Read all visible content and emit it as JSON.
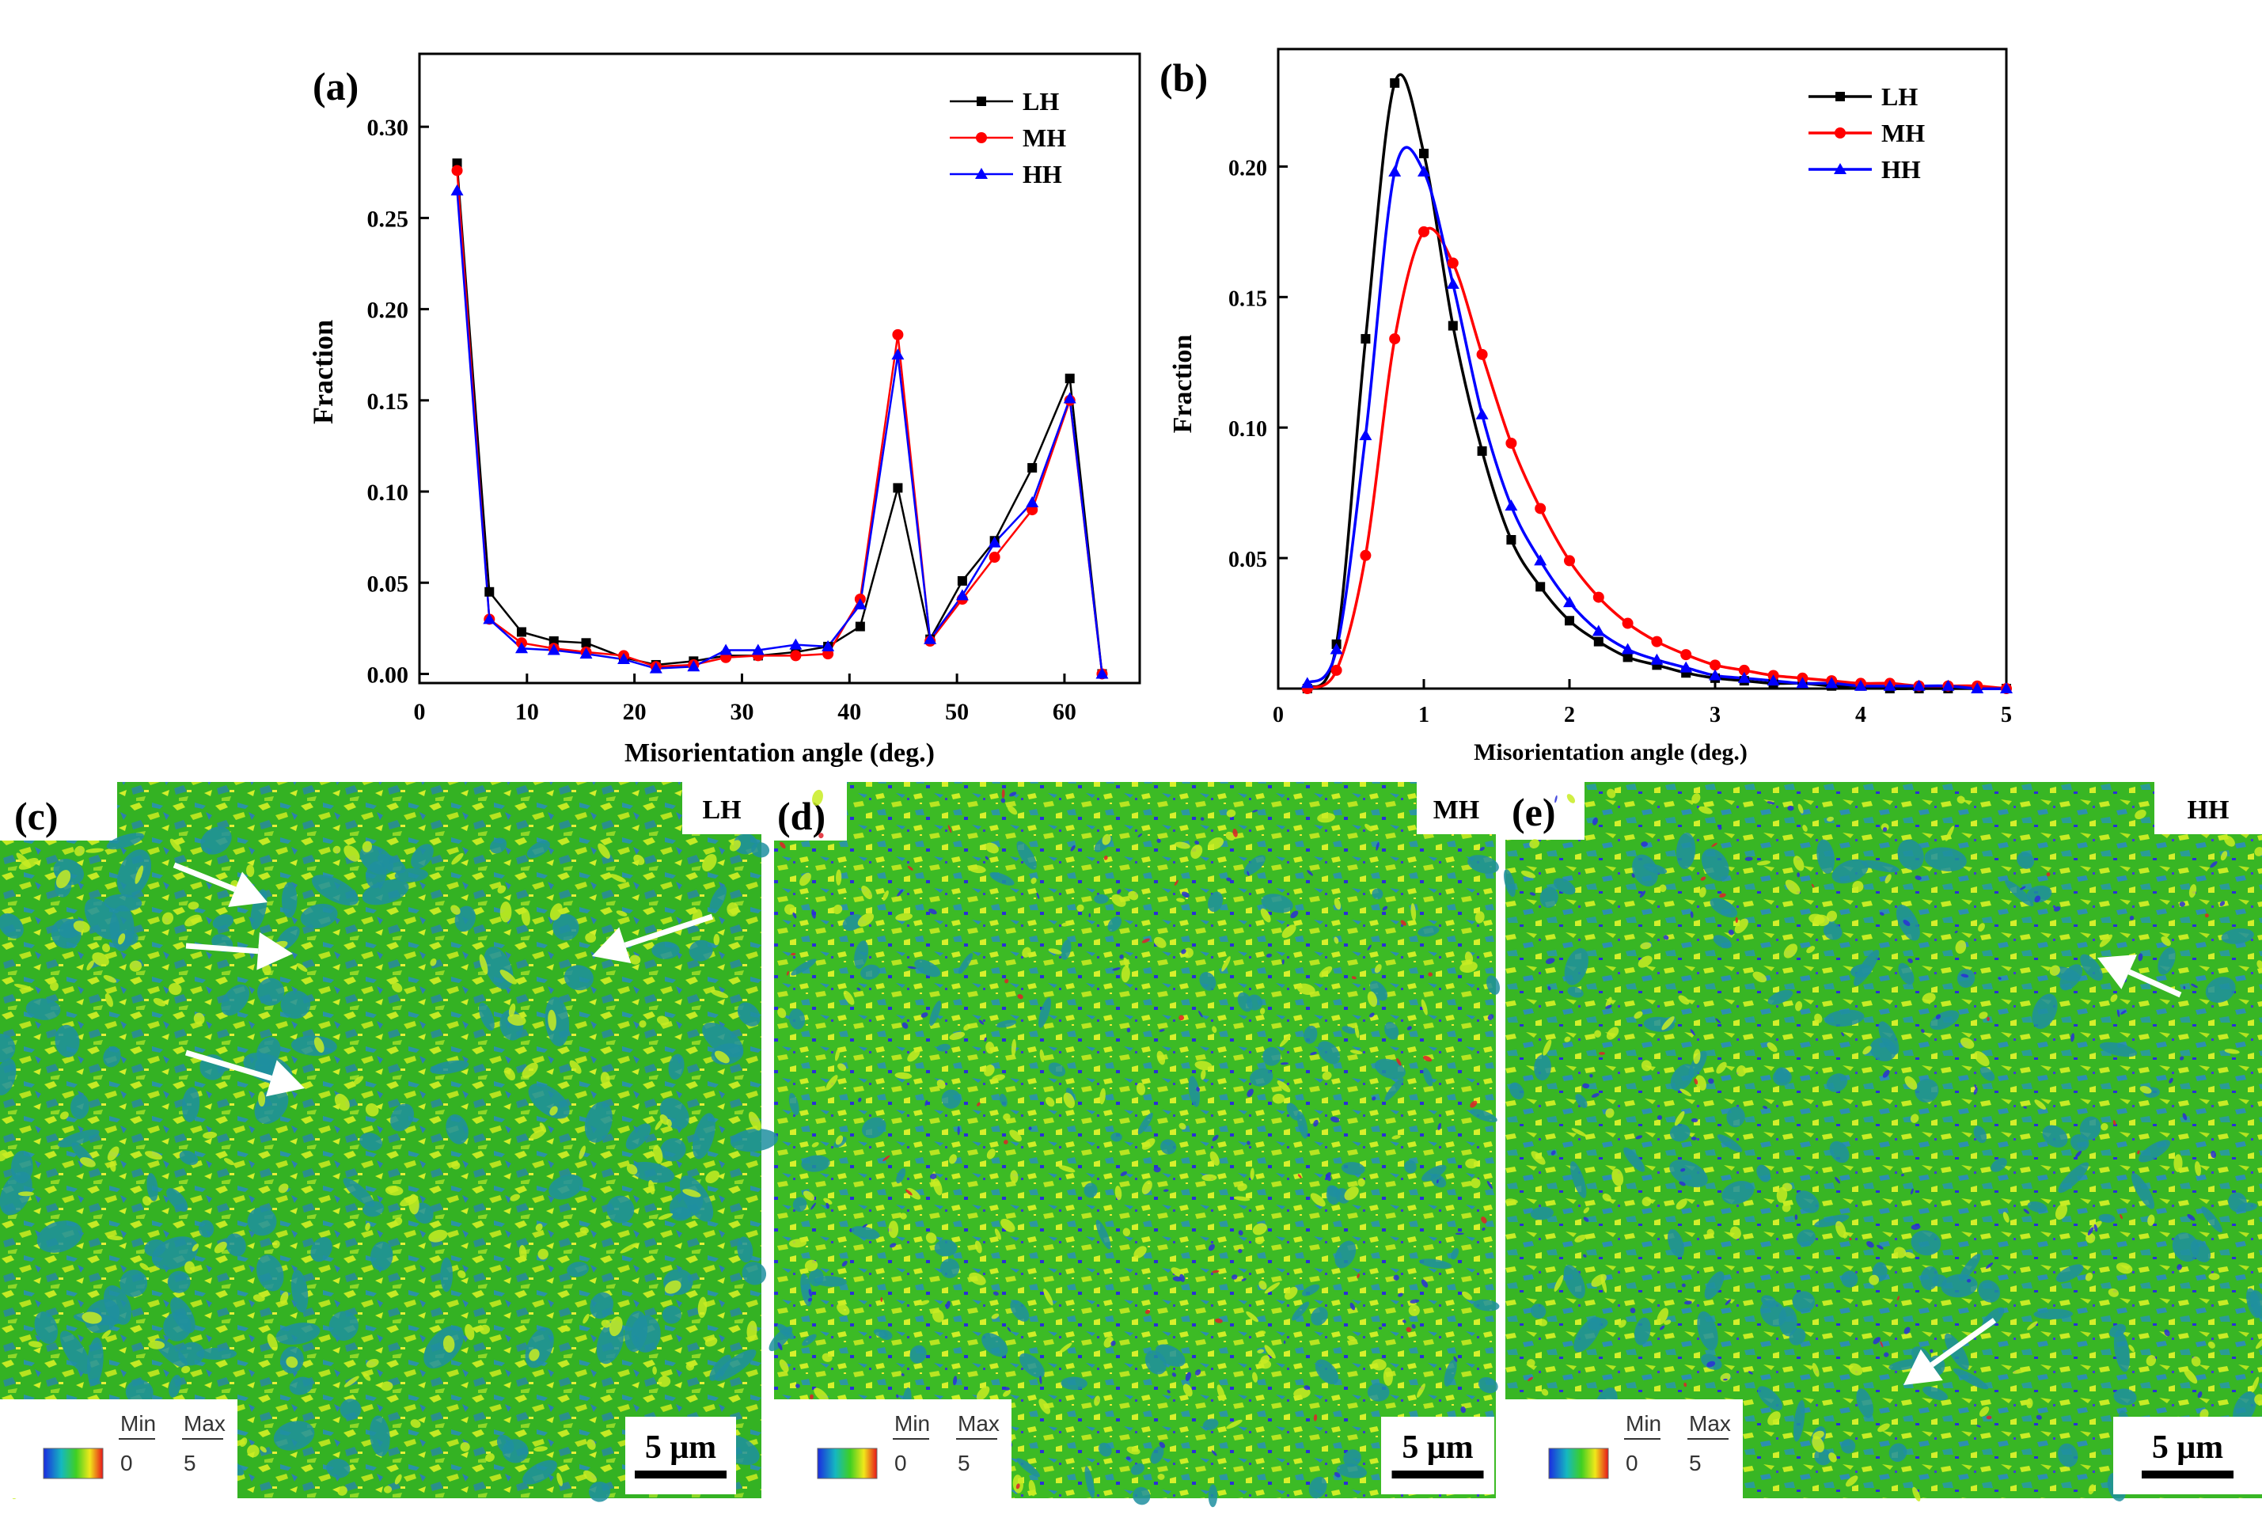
{
  "chart_data": [
    {
      "panel": "(a)",
      "type": "line",
      "xlabel": "Misorientation angle (deg.)",
      "ylabel": "Fraction",
      "xlim": [
        0,
        67
      ],
      "ylim": [
        -0.005,
        0.34
      ],
      "xticks": [
        "0",
        "10",
        "20",
        "30",
        "40",
        "50",
        "60"
      ],
      "xtick_values": [
        0,
        10,
        20,
        30,
        40,
        50,
        60
      ],
      "yticks": [
        "0.00",
        "0.05",
        "0.10",
        "0.15",
        "0.20",
        "0.25",
        "0.30"
      ],
      "ytick_values": [
        0,
        0.05,
        0.1,
        0.15,
        0.2,
        0.25,
        0.3
      ],
      "legend_position": "top-right",
      "x": [
        3.5,
        6.5,
        9.5,
        12.5,
        15.5,
        19,
        22,
        25.5,
        28.5,
        31.5,
        35,
        38,
        41,
        44.5,
        47.5,
        50.5,
        53.5,
        57,
        60.5,
        63.5
      ],
      "series": [
        {
          "name": "LH",
          "color": "#000000",
          "marker": "square",
          "values": [
            0.28,
            0.045,
            0.023,
            0.018,
            0.017,
            0.009,
            0.005,
            0.007,
            0.01,
            0.01,
            0.012,
            0.015,
            0.026,
            0.102,
            0.019,
            0.051,
            0.073,
            0.113,
            0.162,
            0.0
          ]
        },
        {
          "name": "MH",
          "color": "#ff0000",
          "marker": "circle",
          "values": [
            0.276,
            0.03,
            0.017,
            0.014,
            0.012,
            0.01,
            0.004,
            0.005,
            0.009,
            0.01,
            0.01,
            0.011,
            0.041,
            0.186,
            0.018,
            0.041,
            0.064,
            0.09,
            0.15,
            0.0
          ]
        },
        {
          "name": "HH",
          "color": "#0000ff",
          "marker": "triangle",
          "values": [
            0.265,
            0.03,
            0.014,
            0.013,
            0.011,
            0.008,
            0.003,
            0.004,
            0.013,
            0.013,
            0.016,
            0.015,
            0.038,
            0.175,
            0.019,
            0.043,
            0.072,
            0.094,
            0.151,
            0.0
          ]
        }
      ]
    },
    {
      "panel": "(b)",
      "type": "line",
      "xlabel": "Misorientation angle (deg.)",
      "ylabel": "Fraction",
      "xlim": [
        0,
        5
      ],
      "ylim": [
        0,
        0.245
      ],
      "xticks": [
        "0",
        "1",
        "2",
        "3",
        "4",
        "5"
      ],
      "xtick_values": [
        0,
        1,
        2,
        3,
        4,
        5
      ],
      "yticks": [
        "0.05",
        "0.10",
        "0.15",
        "0.20"
      ],
      "ytick_values": [
        0.05,
        0.1,
        0.15,
        0.2
      ],
      "legend_position": "top-right",
      "x": [
        0.2,
        0.4,
        0.6,
        0.8,
        1.0,
        1.2,
        1.4,
        1.6,
        1.8,
        2.0,
        2.2,
        2.4,
        2.6,
        2.8,
        3.0,
        3.2,
        3.4,
        3.6,
        3.8,
        4.0,
        4.2,
        4.4,
        4.6,
        4.8,
        5.0
      ],
      "series": [
        {
          "name": "LH",
          "color": "#000000",
          "marker": "square",
          "values": [
            0.0,
            0.017,
            0.134,
            0.232,
            0.205,
            0.139,
            0.091,
            0.057,
            0.039,
            0.026,
            0.018,
            0.012,
            0.009,
            0.006,
            0.004,
            0.003,
            0.002,
            0.002,
            0.001,
            0.001,
            0.0,
            0.0,
            0.0,
            0.0,
            0.0
          ]
        },
        {
          "name": "MH",
          "color": "#ff0000",
          "marker": "circle",
          "values": [
            0.0,
            0.007,
            0.051,
            0.134,
            0.175,
            0.163,
            0.128,
            0.094,
            0.069,
            0.049,
            0.035,
            0.025,
            0.018,
            0.013,
            0.009,
            0.007,
            0.005,
            0.004,
            0.003,
            0.002,
            0.002,
            0.001,
            0.001,
            0.001,
            0.0
          ]
        },
        {
          "name": "HH",
          "color": "#0000ff",
          "marker": "triangle",
          "values": [
            0.002,
            0.015,
            0.097,
            0.198,
            0.198,
            0.155,
            0.105,
            0.07,
            0.049,
            0.033,
            0.022,
            0.015,
            0.011,
            0.008,
            0.005,
            0.004,
            0.003,
            0.002,
            0.002,
            0.001,
            0.001,
            0.001,
            0.001,
            0.0,
            0.0
          ]
        }
      ]
    }
  ],
  "maps": [
    {
      "panel": "(c)",
      "label": "LH",
      "legend_min_label": "Min",
      "legend_max_label": "Max",
      "legend_min_value": "0",
      "legend_max_value": "5",
      "scale_bar": "5 μm",
      "arrows": 4
    },
    {
      "panel": "(d)",
      "label": "MH",
      "legend_min_label": "Min",
      "legend_max_label": "Max",
      "legend_min_value": "0",
      "legend_max_value": "5",
      "scale_bar": "5 μm",
      "arrows": 0
    },
    {
      "panel": "(e)",
      "label": "HH",
      "legend_min_label": "Min",
      "legend_max_label": "Max",
      "legend_min_value": "0",
      "legend_max_value": "5",
      "scale_bar": "5 μm",
      "arrows": 2
    }
  ],
  "colors": {
    "map_base": "#2fb31f",
    "map_light": "#c8ec22",
    "map_dark": "#1f8fa0",
    "map_blue": "#2a2fd8",
    "map_red": "#e0202a"
  }
}
